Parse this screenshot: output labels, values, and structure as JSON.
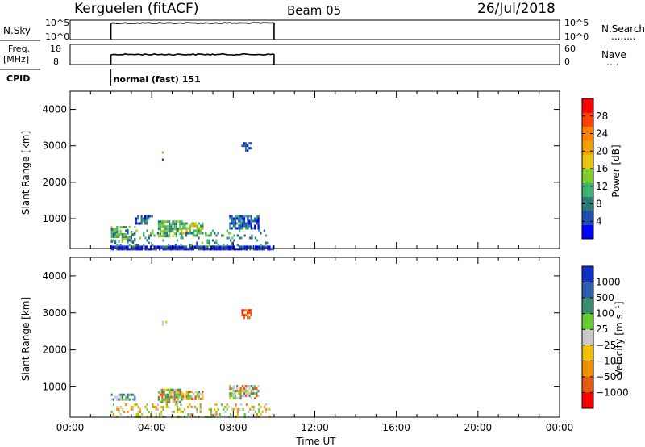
{
  "header": {
    "station": "Kerguelen (fitACF)",
    "beam": "Beam 05",
    "date": "26/Jul/2018"
  },
  "strips": {
    "nsky": {
      "left_label": "N.Sky",
      "left_ticks": [
        "10^5",
        "10^0"
      ],
      "right_ticks": [
        "10^5",
        "10^0"
      ],
      "right_label": "N.Search",
      "right_dots": "........",
      "series": {
        "x_start_hours": 2.0,
        "x_end_hours": 10.0,
        "level_fraction": 0.85
      }
    },
    "freq": {
      "left_label_line1": "Freq.",
      "left_label_line2": "[MHz]",
      "left_ticks": [
        "18",
        "8"
      ],
      "right_ticks": [
        "60",
        "0"
      ],
      "right_label": "Nave",
      "right_dots": "....",
      "series": {
        "x_start_hours": 2.0,
        "x_end_hours": 10.0,
        "level_fraction": 0.5
      }
    },
    "cpid": {
      "label": "CPID",
      "mode_text": "normal (fast) 151",
      "mode_start_hours": 2.0
    }
  },
  "chart_data": [
    {
      "type": "heatmap",
      "name": "power",
      "ylabel": "Slant Range [km]",
      "ylim": [
        180,
        4500
      ],
      "yticks": [
        1000,
        2000,
        3000,
        4000
      ],
      "x_hours_range": [
        0,
        24
      ],
      "colorbar": {
        "label": "Power [dB]",
        "min": 0,
        "max": 32,
        "tick_values": [
          4,
          8,
          12,
          16,
          20,
          24,
          28
        ],
        "tick_labels": [
          "4",
          "8",
          "12",
          "16",
          "20",
          "24",
          "28"
        ],
        "colors": [
          "#0000ff",
          "#1f4fb0",
          "#2a7a78",
          "#3cb371",
          "#7ccd2a",
          "#e8c410",
          "#f0a000",
          "#ff7f00",
          "#ff4000",
          "#ff0000"
        ]
      },
      "regions": [
        {
          "x": [
            2.0,
            10.0
          ],
          "y": [
            180,
            260
          ],
          "level": 0.1,
          "density": 0.9
        },
        {
          "x": [
            2.0,
            3.2
          ],
          "y": [
            400,
            800
          ],
          "level": 0.35,
          "density": 0.55
        },
        {
          "x": [
            3.2,
            4.0
          ],
          "y": [
            900,
            1100
          ],
          "level": 0.15,
          "density": 0.6
        },
        {
          "x": [
            4.3,
            5.5
          ],
          "y": [
            550,
            950
          ],
          "level": 0.4,
          "density": 0.75
        },
        {
          "x": [
            5.5,
            6.5
          ],
          "y": [
            600,
            900
          ],
          "level": 0.45,
          "density": 0.7
        },
        {
          "x": [
            7.8,
            9.2
          ],
          "y": [
            750,
            1100
          ],
          "level": 0.2,
          "density": 0.8
        },
        {
          "x": [
            2.0,
            9.8
          ],
          "y": [
            300,
            700
          ],
          "level": 0.3,
          "density": 0.2
        },
        {
          "x": [
            8.4,
            8.9
          ],
          "y": [
            2850,
            3100
          ],
          "level": 0.12,
          "density": 0.6
        },
        {
          "x": [
            4.5,
            4.7
          ],
          "y": [
            2650,
            2850
          ],
          "level": 0.3,
          "density": 0.3
        }
      ]
    },
    {
      "type": "heatmap",
      "name": "velocity",
      "ylabel": "Slant Range [km]",
      "ylim": [
        180,
        4500
      ],
      "yticks": [
        1000,
        2000,
        3000,
        4000
      ],
      "x_hours_range": [
        0,
        24
      ],
      "xticks": [
        "00:00",
        "04:00",
        "08:00",
        "12:00",
        "16:00",
        "20:00",
        "00:00"
      ],
      "xlabel": "Time UT",
      "colorbar": {
        "label": "Velocity [m s⁻¹]",
        "tick_labels": [
          "1000",
          "500",
          "100",
          "25",
          "−25",
          "−100",
          "−500",
          "−1000"
        ],
        "colors": [
          "#1030c8",
          "#2f5fb0",
          "#3b8c6e",
          "#66cc33",
          "#c8c8c8",
          "#f0c000",
          "#f09000",
          "#e05a10",
          "#ff0000"
        ]
      },
      "regions": [
        {
          "x": [
            2.0,
            3.2
          ],
          "y": [
            680,
            820
          ],
          "vel": "green",
          "density": 0.55
        },
        {
          "x": [
            2.0,
            9.8
          ],
          "y": [
            200,
            550
          ],
          "vel": "yellow",
          "density": 0.3
        },
        {
          "x": [
            4.3,
            5.5
          ],
          "y": [
            600,
            950
          ],
          "vel": "gray",
          "density": 0.7
        },
        {
          "x": [
            5.5,
            6.5
          ],
          "y": [
            650,
            900
          ],
          "vel": "gray",
          "density": 0.65
        },
        {
          "x": [
            7.8,
            9.2
          ],
          "y": [
            700,
            1050
          ],
          "vel": "gray",
          "density": 0.7
        },
        {
          "x": [
            8.4,
            8.9
          ],
          "y": [
            2850,
            3100
          ],
          "vel": "orange",
          "density": 0.6
        },
        {
          "x": [
            4.5,
            4.7
          ],
          "y": [
            2650,
            2850
          ],
          "vel": "gray",
          "density": 0.3
        }
      ]
    }
  ]
}
